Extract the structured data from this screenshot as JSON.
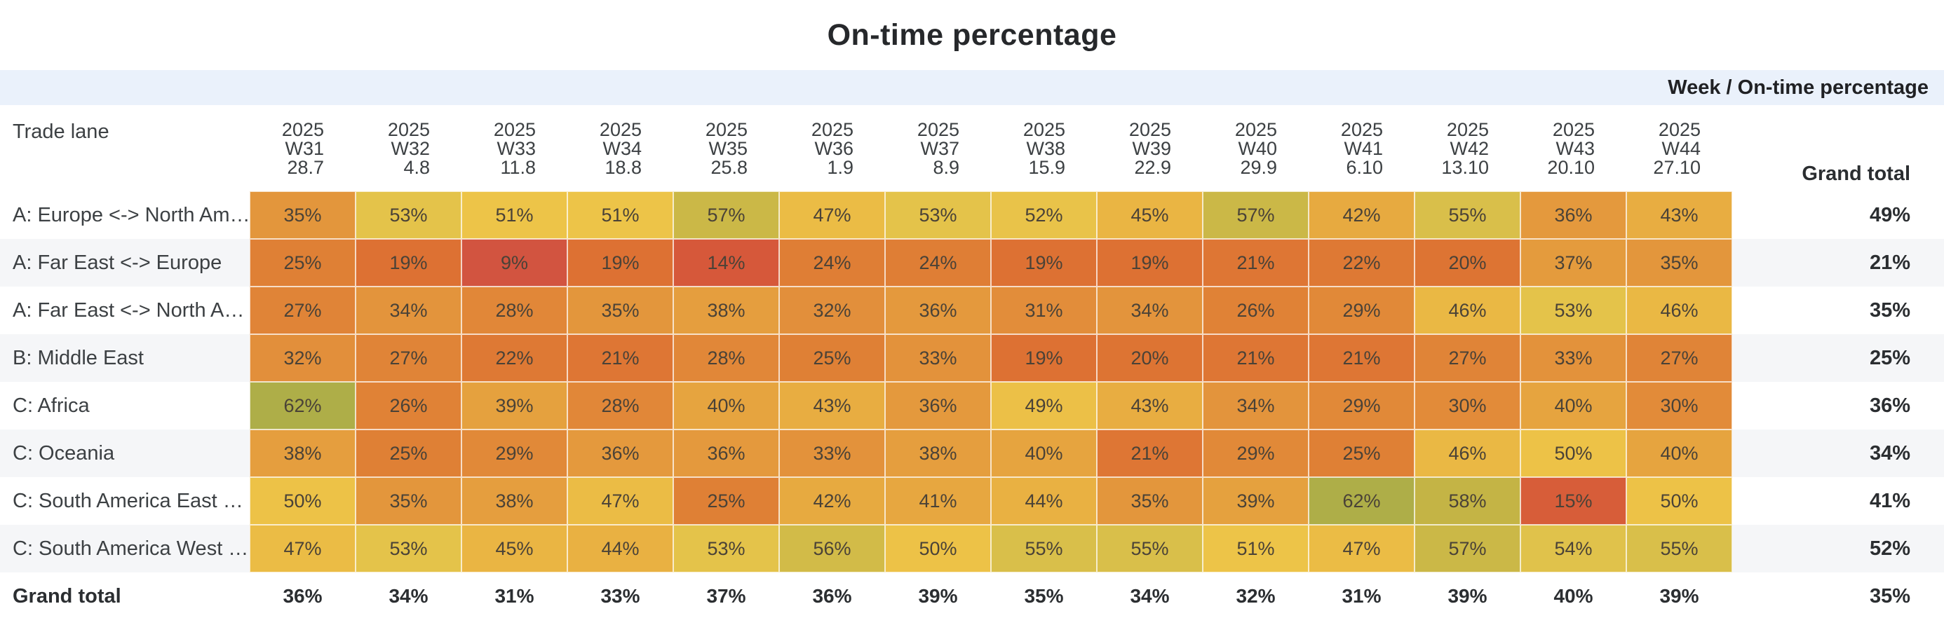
{
  "title": "On-time percentage",
  "pivot_corner_label": "Week / On-time percentage",
  "row_dimension_label": "Trade lane",
  "grand_total_label": "Grand total",
  "colors": {
    "page_bg": "#ffffff",
    "band_bg": "#eaf1fb",
    "stripe_bg": "#f5f6f8",
    "title_text": "#26282b",
    "body_text": "#3c4043",
    "heat_stops": [
      [
        9,
        "#d25440"
      ],
      [
        14,
        "#d6583a"
      ],
      [
        19,
        "#dd7133"
      ],
      [
        25,
        "#df8035"
      ],
      [
        31,
        "#e28d3a"
      ],
      [
        37,
        "#e49b3d"
      ],
      [
        43,
        "#e8ad41"
      ],
      [
        47,
        "#ebbc45"
      ],
      [
        51,
        "#edc448"
      ],
      [
        54,
        "#e0c24b"
      ],
      [
        58,
        "#c4b445"
      ],
      [
        62,
        "#aeae48"
      ]
    ]
  },
  "chart_data": {
    "type": "heatmap",
    "title": "On-time percentage",
    "legend": "Week / On-time percentage",
    "value_format": "percent",
    "columns": [
      {
        "year": "2025",
        "week": "W31",
        "date": "28.7"
      },
      {
        "year": "2025",
        "week": "W32",
        "date": "4.8"
      },
      {
        "year": "2025",
        "week": "W33",
        "date": "11.8"
      },
      {
        "year": "2025",
        "week": "W34",
        "date": "18.8"
      },
      {
        "year": "2025",
        "week": "W35",
        "date": "25.8"
      },
      {
        "year": "2025",
        "week": "W36",
        "date": "1.9"
      },
      {
        "year": "2025",
        "week": "W37",
        "date": "8.9"
      },
      {
        "year": "2025",
        "week": "W38",
        "date": "15.9"
      },
      {
        "year": "2025",
        "week": "W39",
        "date": "22.9"
      },
      {
        "year": "2025",
        "week": "W40",
        "date": "29.9"
      },
      {
        "year": "2025",
        "week": "W41",
        "date": "6.10"
      },
      {
        "year": "2025",
        "week": "W42",
        "date": "13.10"
      },
      {
        "year": "2025",
        "week": "W43",
        "date": "20.10"
      },
      {
        "year": "2025",
        "week": "W44",
        "date": "27.10"
      }
    ],
    "rows": [
      "A: Europe <-> North Am…",
      "A: Far East <-> Europe",
      "A: Far East <-> North A…",
      "B: Middle East",
      "C: Africa",
      "C: Oceania",
      "C: South America East …",
      "C: South America West …"
    ],
    "values": [
      [
        35,
        53,
        51,
        51,
        57,
        47,
        53,
        52,
        45,
        57,
        42,
        55,
        36,
        43
      ],
      [
        25,
        19,
        9,
        19,
        14,
        24,
        24,
        19,
        19,
        21,
        22,
        20,
        37,
        35
      ],
      [
        27,
        34,
        28,
        35,
        38,
        32,
        36,
        31,
        34,
        26,
        29,
        46,
        53,
        46
      ],
      [
        32,
        27,
        22,
        21,
        28,
        25,
        33,
        19,
        20,
        21,
        21,
        27,
        33,
        27
      ],
      [
        62,
        26,
        39,
        28,
        40,
        43,
        36,
        49,
        43,
        34,
        29,
        30,
        40,
        30
      ],
      [
        38,
        25,
        29,
        36,
        36,
        33,
        38,
        40,
        21,
        29,
        25,
        46,
        50,
        40
      ],
      [
        50,
        35,
        38,
        47,
        25,
        42,
        41,
        44,
        35,
        39,
        62,
        58,
        15,
        50
      ],
      [
        47,
        53,
        45,
        44,
        53,
        56,
        50,
        55,
        55,
        51,
        47,
        57,
        54,
        55
      ]
    ],
    "row_totals": [
      49,
      21,
      35,
      25,
      36,
      34,
      41,
      52
    ],
    "column_totals": [
      36,
      34,
      31,
      33,
      37,
      36,
      39,
      35,
      34,
      32,
      31,
      39,
      40,
      39
    ],
    "grand_total": 35
  }
}
